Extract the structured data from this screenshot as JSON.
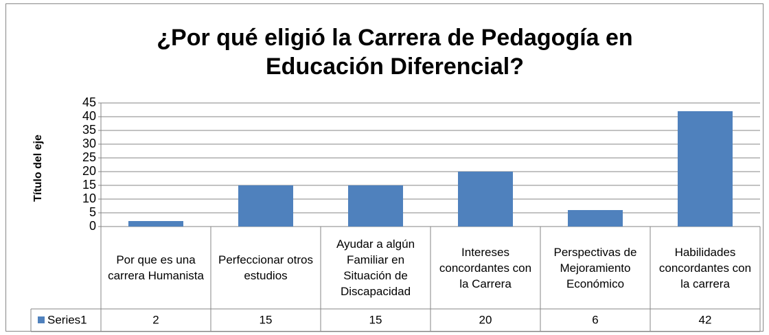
{
  "chart_data": {
    "type": "bar",
    "title": "¿Por qué eligió la Carrera de Pedagogía en Educación Diferencial?",
    "y_label": "Título del eje",
    "categories": [
      "Por que es una carrera Humanista",
      "Perfeccionar otros estudios",
      "Ayudar a algún Familiar en Situación de Discapacidad",
      "Intereses concordantes con la Carrera",
      "Perspectivas de Mejoramiento Económico",
      "Habilidades concordantes con la carrera"
    ],
    "series": [
      {
        "name": "Series1",
        "color": "#4f81bd",
        "values": [
          2,
          15,
          15,
          20,
          6,
          42
        ]
      }
    ],
    "ylim": [
      0,
      45
    ],
    "yticks": [
      0,
      5,
      10,
      15,
      20,
      25,
      30,
      35,
      40,
      45
    ],
    "grid": true,
    "data_table": true
  }
}
